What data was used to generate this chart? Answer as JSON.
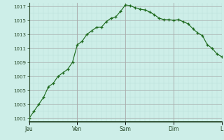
{
  "x_values": [
    0,
    1,
    2,
    3,
    4,
    5,
    6,
    7,
    8,
    9,
    10,
    11,
    12,
    13,
    14,
    15,
    16,
    17,
    18,
    19,
    20,
    21,
    22,
    23,
    24,
    25,
    26,
    27,
    28,
    29,
    30,
    31,
    32,
    33,
    34,
    35,
    36,
    37,
    38,
    39,
    40
  ],
  "y_values": [
    1001,
    1002,
    1003,
    1004,
    1005.5,
    1006,
    1007,
    1007.5,
    1008,
    1009,
    1011.5,
    1012,
    1013,
    1013.5,
    1014,
    1014,
    1014.8,
    1015.3,
    1015.5,
    1016.3,
    1017.2,
    1017.1,
    1016.8,
    1016.6,
    1016.5,
    1016.2,
    1015.8,
    1015.3,
    1015.1,
    1015.1,
    1015.0,
    1015.1,
    1014.8,
    1014.5,
    1013.8,
    1013.2,
    1012.8,
    1011.5,
    1011.0,
    1010.2,
    1009.8
  ],
  "day_ticks_x": [
    0,
    10,
    20,
    30,
    40
  ],
  "day_labels": [
    "Jeu",
    "Ven",
    "Sam",
    "Dim",
    "L"
  ],
  "xlim": [
    0,
    40
  ],
  "ylim": [
    1000.5,
    1017.5
  ],
  "yticks": [
    1001,
    1003,
    1005,
    1007,
    1009,
    1011,
    1013,
    1015,
    1017
  ],
  "line_color": "#1f6b1f",
  "bg_color": "#cdeee8",
  "grid_major_color": "#aaaaaa",
  "grid_minor_color": "#b8ddd8",
  "axes_color": "#2a4a2a",
  "bottom_spine_color": "#1a3a1a"
}
